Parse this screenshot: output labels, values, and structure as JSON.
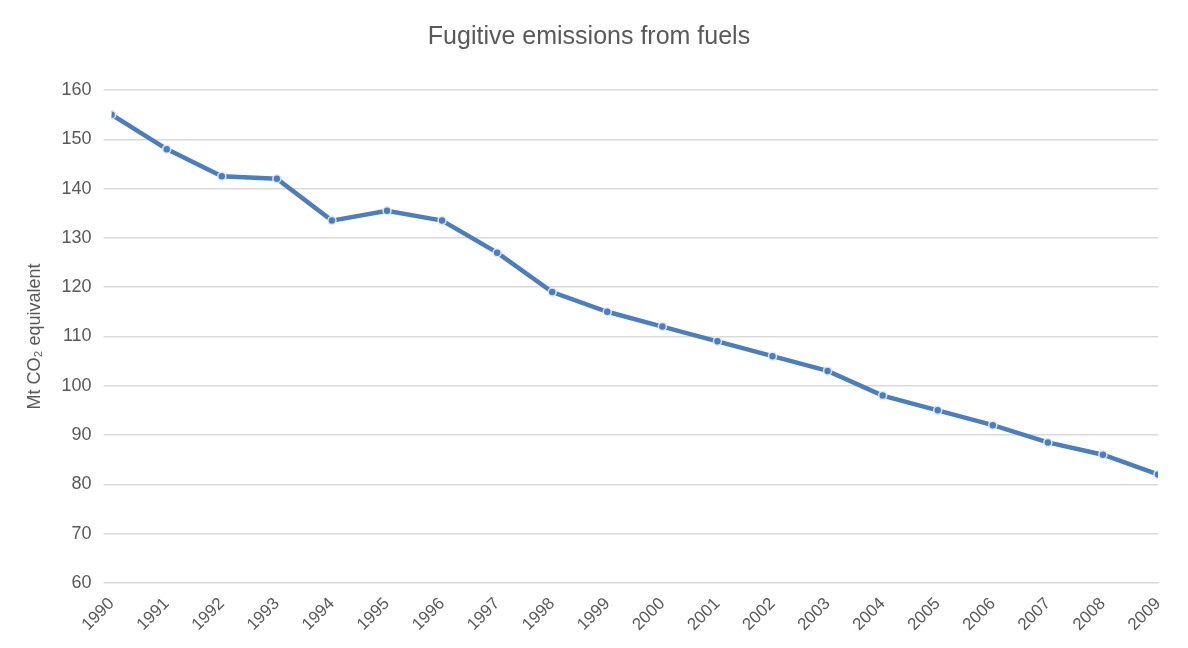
{
  "chart_data": {
    "type": "line",
    "title": "Fugitive emissions from fuels",
    "y_label": "Mt CO₂ equivalent",
    "categories": [
      "1990",
      "1991",
      "1992",
      "1993",
      "1994",
      "1995",
      "1996",
      "1997",
      "1998",
      "1999",
      "2000",
      "2001",
      "2002",
      "2003",
      "2004",
      "2005",
      "2006",
      "2007",
      "2008",
      "2009"
    ],
    "values": [
      155,
      148,
      142.5,
      142,
      133.5,
      135.5,
      133.5,
      127,
      119,
      115,
      112,
      109,
      106,
      103,
      98,
      95,
      92,
      88.5,
      86,
      82
    ],
    "color": "#4a7ebf",
    "marker": "circle",
    "ylim": [
      60,
      160
    ],
    "yticks": [
      60,
      70,
      80,
      90,
      100,
      110,
      120,
      130,
      140,
      150,
      160
    ],
    "grid": true
  }
}
